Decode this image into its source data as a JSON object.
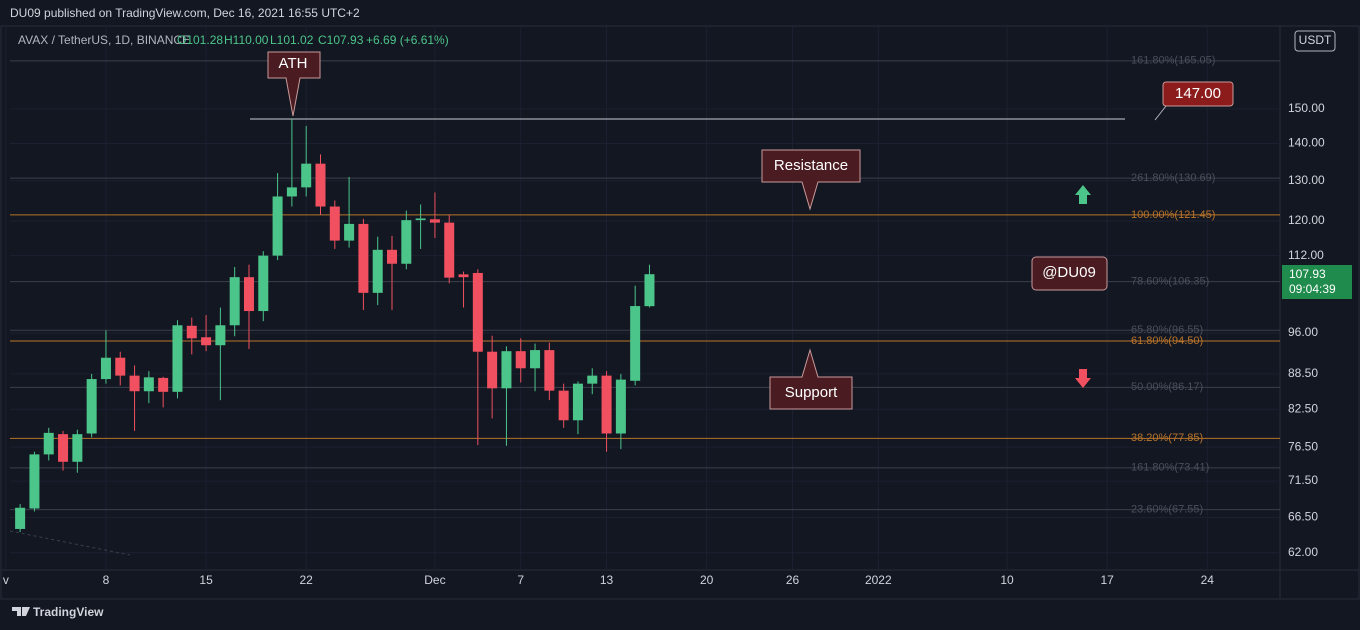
{
  "header": "DU09 published on TradingView.com, Dec 16, 2021 16:55 UTC+2",
  "footer": "TradingView",
  "chart_data": {
    "type": "candlestick",
    "legend": {
      "symbol": "AVAX / TetherUS, 1D, BINANCE",
      "open": "O101.28",
      "high": "H110.00",
      "low": "L101.02",
      "close": "C107.93",
      "change": "+6.69 (+6.61%)"
    },
    "currency": "USDT",
    "last_price": {
      "value": 107.93,
      "countdown": "09:04:39"
    },
    "x": [
      "2021-11-02",
      "2021-11-03",
      "2021-11-04",
      "2021-11-05",
      "2021-11-06",
      "2021-11-07",
      "2021-11-08",
      "2021-11-09",
      "2021-11-10",
      "2021-11-11",
      "2021-11-12",
      "2021-11-13",
      "2021-11-14",
      "2021-11-15",
      "2021-11-16",
      "2021-11-17",
      "2021-11-18",
      "2021-11-19",
      "2021-11-20",
      "2021-11-21",
      "2021-11-22",
      "2021-11-23",
      "2021-11-24",
      "2021-11-25",
      "2021-11-26",
      "2021-11-27",
      "2021-11-28",
      "2021-11-29",
      "2021-11-30",
      "2021-12-01",
      "2021-12-02",
      "2021-12-03",
      "2021-12-04",
      "2021-12-05",
      "2021-12-06",
      "2021-12-07",
      "2021-12-08",
      "2021-12-09",
      "2021-12-10",
      "2021-12-11",
      "2021-12-12",
      "2021-12-13",
      "2021-12-14",
      "2021-12-15",
      "2021-12-16"
    ],
    "open": [
      65.0,
      67.7,
      75.4,
      78.5,
      74.3,
      78.6,
      87.6,
      91.4,
      88.2,
      85.5,
      87.8,
      85.4,
      97.4,
      95.2,
      93.7,
      97.5,
      107.3,
      100.3,
      112.0,
      126.0,
      128.3,
      134.5,
      123.5,
      115.4,
      119.3,
      104.0,
      113.3,
      110.2,
      120.2,
      120.4,
      119.6,
      107.9,
      108.2,
      92.5,
      86.0,
      92.6,
      89.5,
      92.8,
      85.6,
      80.7,
      86.8,
      88.2,
      78.6,
      87.3,
      101.28
    ],
    "high": [
      68.3,
      75.8,
      79.5,
      79.0,
      79.2,
      88.5,
      96.5,
      92.5,
      90.0,
      89.0,
      88.0,
      98.5,
      99.0,
      99.5,
      101.0,
      109.5,
      110.0,
      113.0,
      132.0,
      147.0,
      145.0,
      137.0,
      125.0,
      131.0,
      120.5,
      116.3,
      116.5,
      122.5,
      124.0,
      127.0,
      121.5,
      108.5,
      109.0,
      95.5,
      93.5,
      95.0,
      94.0,
      94.2,
      86.8,
      87.2,
      89.5,
      89.0,
      88.5,
      105.5,
      110.0
    ],
    "low": [
      64.6,
      67.3,
      74.5,
      73.0,
      72.7,
      78.0,
      86.8,
      86.5,
      79.0,
      83.5,
      82.8,
      84.3,
      92.0,
      92.6,
      84.0,
      95.4,
      93.0,
      98.3,
      111.0,
      123.5,
      126.0,
      121.5,
      113.5,
      113.8,
      100.5,
      101.5,
      100.5,
      109.0,
      113.5,
      116.0,
      106.0,
      101.0,
      76.8,
      81.0,
      76.7,
      87.0,
      85.5,
      84.0,
      79.5,
      78.5,
      85.0,
      75.8,
      76.2,
      86.5,
      101.02
    ],
    "close": [
      67.8,
      75.4,
      78.7,
      74.3,
      78.5,
      87.6,
      91.4,
      88.2,
      85.5,
      87.9,
      85.4,
      97.5,
      95.0,
      93.7,
      97.5,
      107.3,
      100.3,
      112.0,
      126.0,
      128.3,
      134.5,
      123.5,
      115.4,
      119.3,
      104.0,
      113.3,
      110.2,
      120.2,
      120.6,
      119.6,
      107.2,
      107.3,
      92.5,
      86.0,
      92.6,
      89.5,
      92.8,
      85.6,
      80.7,
      86.8,
      88.2,
      78.6,
      87.5,
      101.3,
      107.93
    ],
    "up_color": "#4cc58a",
    "down_color": "#f0505f",
    "xlim": [
      "2021-11-01T07:00Z",
      "2022-01-29T02:00Z"
    ],
    "xticks": [
      {
        "value": "2021-11-01",
        "label": "v"
      },
      {
        "value": "2021-11-08",
        "label": "8"
      },
      {
        "value": "2021-11-15",
        "label": "15"
      },
      {
        "value": "2021-11-22",
        "label": "22"
      },
      {
        "value": "2021-12-01",
        "label": "Dec"
      },
      {
        "value": "2021-12-07",
        "label": "7"
      },
      {
        "value": "2021-12-13",
        "label": "13"
      },
      {
        "value": "2021-12-20",
        "label": "20"
      },
      {
        "value": "2021-12-26",
        "label": "26"
      },
      {
        "value": "2022-01-01",
        "label": "2022"
      },
      {
        "value": "2022-01-10",
        "label": "10"
      },
      {
        "value": "2022-01-17",
        "label": "17"
      },
      {
        "value": "2022-01-24",
        "label": "24"
      }
    ],
    "ylim": [
      59.9,
      175.5
    ],
    "log_scale": true,
    "yticks": [
      {
        "value": 62,
        "label": "62.00"
      },
      {
        "value": 66.5,
        "label": "66.50"
      },
      {
        "value": 71.5,
        "label": "71.50"
      },
      {
        "value": 76.5,
        "label": "76.50"
      },
      {
        "value": 82.5,
        "label": "82.50"
      },
      {
        "value": 88.5,
        "label": "88.50"
      },
      {
        "value": 96,
        "label": "96.00"
      },
      {
        "value": 112,
        "label": "112.00"
      },
      {
        "value": 120,
        "label": "120.00"
      },
      {
        "value": 130,
        "label": "130.00"
      },
      {
        "value": 140,
        "label": "140.00"
      },
      {
        "value": 150,
        "label": "150.00"
      }
    ],
    "grid": true,
    "levels": [
      {
        "value": 165.05,
        "label": "161.80%(165.05)",
        "color": "#3a3f4b"
      },
      {
        "value": 130.69,
        "label": "261.80%(130.69)",
        "color": "#3a3f4b"
      },
      {
        "value": 121.45,
        "label": "100.00%(121.45)",
        "color": "#b8742a"
      },
      {
        "value": 106.35,
        "label": "78.60%(106.35)",
        "color": "#3a3f4b"
      },
      {
        "value": 96.55,
        "label": "65.80%(96.55)",
        "color": "#3a3f4b"
      },
      {
        "value": 94.5,
        "label": "61.80%(94.50)",
        "color": "#b8742a"
      },
      {
        "value": 86.17,
        "label": "50.00%(86.17)",
        "color": "#3a3f4b"
      },
      {
        "value": 77.85,
        "label": "38.20%(77.85)",
        "color": "#b8742a"
      },
      {
        "value": 73.41,
        "label": "161.80%(73.41)",
        "color": "#3a3f4b"
      },
      {
        "value": 67.55,
        "label": "23.60%(67.55)",
        "color": "#3a3f4b"
      }
    ],
    "ath_line": {
      "value": 147,
      "label": "147.00"
    },
    "annotations": [
      "ATH",
      "Resistance",
      "Support",
      "@DU09"
    ]
  }
}
